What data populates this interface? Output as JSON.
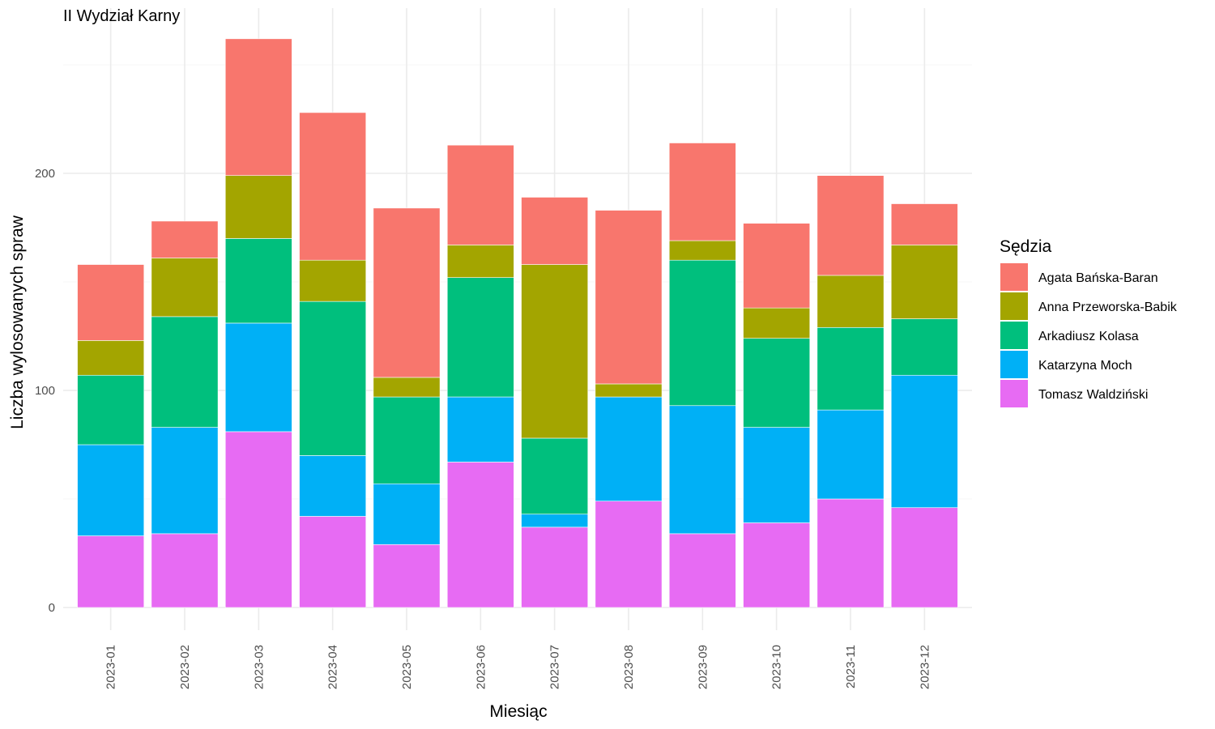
{
  "chart_data": {
    "type": "bar",
    "stacked": true,
    "title": "II Wydział Karny",
    "xlabel": "Miesiąc",
    "ylabel": "Liczba wylosowanych spraw",
    "ylim": [
      0,
      260
    ],
    "yticks": [
      0,
      100,
      200
    ],
    "grid": true,
    "legend_title": "Sędzia",
    "legend_position": "right",
    "categories": [
      "2023-01",
      "2023-02",
      "2023-03",
      "2023-04",
      "2023-05",
      "2023-06",
      "2023-07",
      "2023-08",
      "2023-09",
      "2023-10",
      "2023-11",
      "2023-12"
    ],
    "series": [
      {
        "name": "Tomasz Waldziński",
        "color": "#E76BF3",
        "values": [
          33,
          34,
          81,
          42,
          29,
          67,
          37,
          49,
          34,
          39,
          50,
          46
        ]
      },
      {
        "name": "Katarzyna Moch",
        "color": "#00B0F6",
        "values": [
          42,
          49,
          50,
          28,
          28,
          30,
          6,
          48,
          59,
          44,
          41,
          61
        ]
      },
      {
        "name": "Arkadiusz Kolasa",
        "color": "#00BF7D",
        "values": [
          32,
          51,
          39,
          71,
          40,
          55,
          35,
          0,
          67,
          41,
          38,
          26
        ]
      },
      {
        "name": "Anna Przeworska-Babik",
        "color": "#A3A500",
        "values": [
          16,
          27,
          29,
          19,
          9,
          15,
          80,
          6,
          9,
          14,
          24,
          34
        ]
      },
      {
        "name": "Agata Bańska-Baran",
        "color": "#F8766D",
        "values": [
          35,
          17,
          63,
          68,
          78,
          46,
          31,
          80,
          45,
          39,
          46,
          19
        ]
      }
    ],
    "legend_order": [
      "Agata Bańska-Baran",
      "Anna Przeworska-Babik",
      "Arkadiusz Kolasa",
      "Katarzyna Moch",
      "Tomasz Waldziński"
    ]
  }
}
